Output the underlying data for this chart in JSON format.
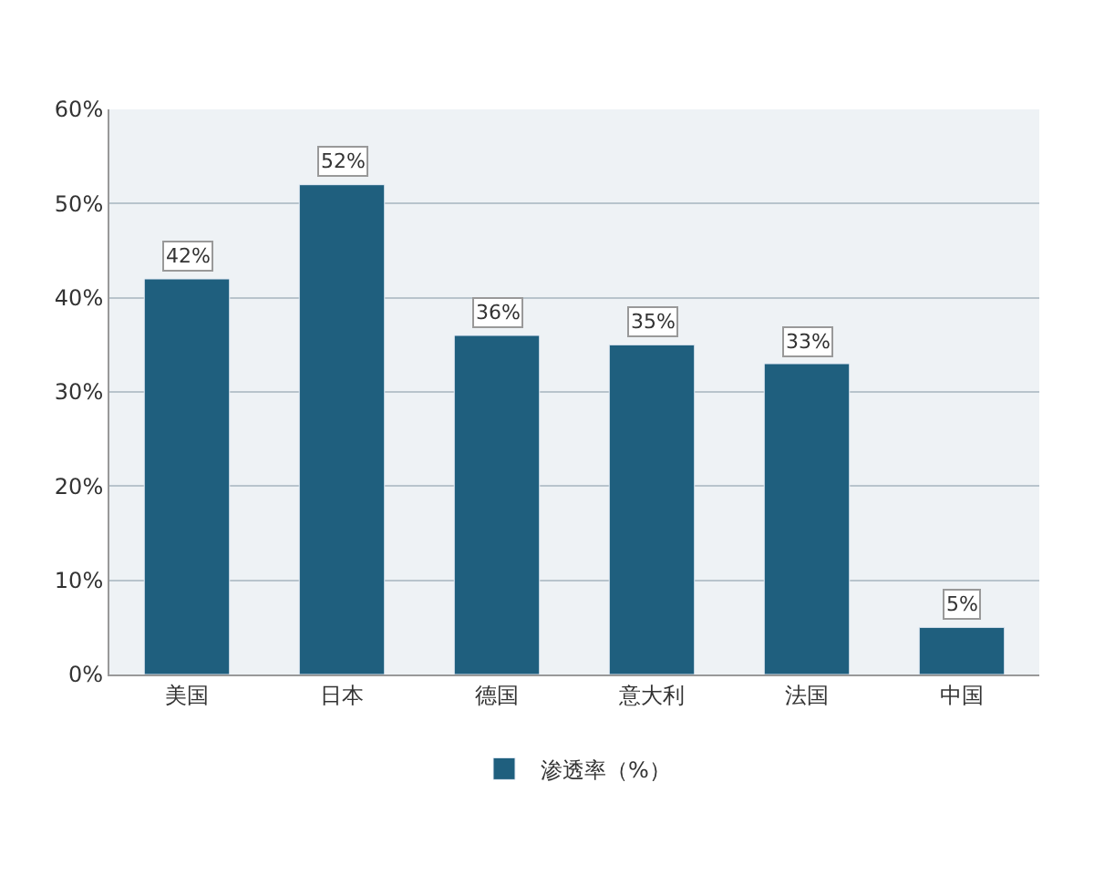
{
  "chart_data": {
    "type": "bar",
    "categories": [
      "美国",
      "日本",
      "德国",
      "意大利",
      "法国",
      "中国"
    ],
    "series": [
      {
        "name": "渗透率（%）",
        "color": "#1f5f7e",
        "values": [
          42,
          52,
          36,
          35,
          33,
          5
        ]
      }
    ],
    "value_labels": [
      "42%",
      "52%",
      "36%",
      "35%",
      "33%",
      "5%"
    ],
    "ylim": [
      0,
      60
    ],
    "yticks": [
      {
        "value": 0,
        "label": "0%"
      },
      {
        "value": 10,
        "label": "10%"
      },
      {
        "value": 20,
        "label": "20%"
      },
      {
        "value": 30,
        "label": "30%"
      },
      {
        "value": 40,
        "label": "40%"
      },
      {
        "value": 50,
        "label": "50%"
      },
      {
        "value": 60,
        "label": "60%"
      }
    ],
    "grid": "y",
    "legend": "bottom"
  }
}
